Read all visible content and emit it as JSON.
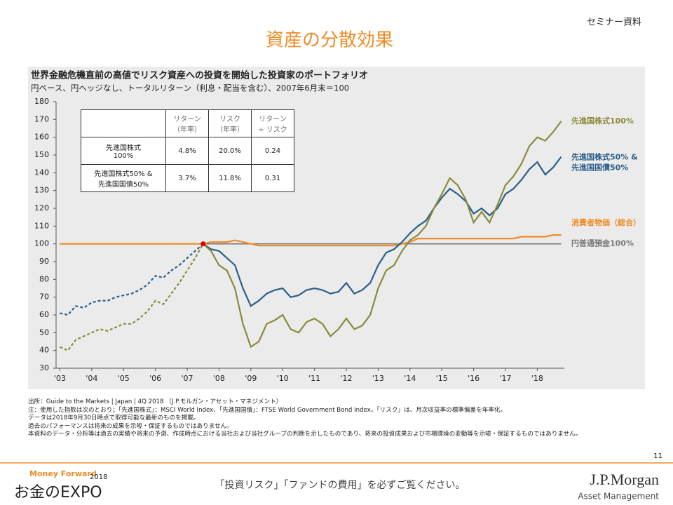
{
  "header": {
    "tag": "セミナー資料",
    "title": "資産の分散効果"
  },
  "chart_data": {
    "type": "line",
    "title": "世界金融危機直前の高値でリスク資産への投資を開始した投資家のポートフォリオ",
    "subtitle": "円ベース、円ヘッジなし、トータルリターン（利息・配当を含む）、2007年6月末＝100",
    "x": [
      2003,
      2003.25,
      2003.5,
      2003.75,
      2004,
      2004.25,
      2004.5,
      2004.75,
      2005,
      2005.25,
      2005.5,
      2005.75,
      2006,
      2006.25,
      2006.5,
      2006.75,
      2007,
      2007.25,
      2007.5,
      2007.75,
      2008,
      2008.25,
      2008.5,
      2008.75,
      2009,
      2009.25,
      2009.5,
      2009.75,
      2010,
      2010.25,
      2010.5,
      2010.75,
      2011,
      2011.25,
      2011.5,
      2011.75,
      2012,
      2012.25,
      2012.5,
      2012.75,
      2013,
      2013.25,
      2013.5,
      2013.75,
      2014,
      2014.25,
      2014.5,
      2014.75,
      2015,
      2015.25,
      2015.5,
      2015.75,
      2016,
      2016.25,
      2016.5,
      2016.75,
      2017,
      2017.25,
      2017.5,
      2017.75,
      2018,
      2018.25,
      2018.5,
      2018.75
    ],
    "series": [
      {
        "name": "先進国株式100%",
        "color": "#8a8a3a",
        "dashed_before": 2007.5,
        "values": [
          42,
          40,
          46,
          48,
          50,
          52,
          51,
          53,
          55,
          55,
          58,
          62,
          68,
          66,
          72,
          78,
          85,
          92,
          100,
          96,
          88,
          85,
          75,
          55,
          42,
          45,
          55,
          57,
          60,
          52,
          50,
          56,
          58,
          55,
          48,
          52,
          58,
          52,
          54,
          60,
          75,
          85,
          88,
          96,
          102,
          105,
          110,
          120,
          128,
          137,
          133,
          125,
          112,
          118,
          112,
          122,
          133,
          138,
          145,
          155,
          160,
          158,
          163,
          169
        ]
      },
      {
        "name": "先進国株式50% &\n先進国国債50%",
        "color": "#2a5f8a",
        "dashed_before": 2007.5,
        "values": [
          61,
          60,
          65,
          64,
          67,
          68,
          68,
          70,
          71,
          72,
          74,
          77,
          82,
          81,
          85,
          88,
          92,
          96,
          100,
          97,
          96,
          92,
          88,
          75,
          65,
          68,
          72,
          74,
          75,
          70,
          71,
          74,
          75,
          74,
          72,
          73,
          78,
          72,
          74,
          78,
          88,
          95,
          97,
          101,
          106,
          110,
          113,
          120,
          126,
          131,
          128,
          124,
          117,
          120,
          116,
          120,
          128,
          131,
          136,
          142,
          146,
          139,
          143,
          149
        ]
      },
      {
        "name": "消費者物価（総合）",
        "color": "#f08a24",
        "values": [
          100,
          100,
          100,
          100,
          100,
          100,
          100,
          100,
          100,
          100,
          100,
          100,
          100,
          100,
          100,
          100,
          100,
          100,
          100,
          101,
          101,
          101,
          102,
          101,
          100,
          99,
          99,
          99,
          99,
          99,
          99,
          99,
          99,
          99,
          99,
          99,
          99,
          99,
          99,
          99,
          99,
          99,
          99,
          100,
          101,
          103,
          103,
          103,
          103,
          103,
          103,
          103,
          103,
          103,
          103,
          103,
          103,
          103,
          104,
          104,
          104,
          104,
          105,
          105
        ]
      },
      {
        "name": "円普通預金100%",
        "color": "#777777",
        "values": [
          100,
          100,
          100,
          100,
          100,
          100,
          100,
          100,
          100,
          100,
          100,
          100,
          100,
          100,
          100,
          100,
          100,
          100,
          100,
          100,
          100,
          100,
          100,
          100,
          100,
          100,
          100,
          100,
          100,
          100,
          100,
          100,
          100,
          100,
          100,
          100,
          100,
          100,
          100,
          100,
          100,
          100,
          100,
          100,
          100,
          100,
          100,
          100,
          100,
          100,
          100,
          100,
          100,
          100,
          100,
          100,
          100,
          100,
          100,
          100,
          100,
          100,
          100,
          100
        ]
      }
    ],
    "marker": {
      "x": 2007.5,
      "y": 100,
      "color": "#e00000"
    },
    "xlim": [
      2002.88,
      2018.85
    ],
    "xticks": [
      {
        "value": 2003,
        "label": "'03"
      },
      {
        "value": 2004,
        "label": "'04"
      },
      {
        "value": 2005,
        "label": "'05"
      },
      {
        "value": 2006,
        "label": "'06"
      },
      {
        "value": 2007,
        "label": "'07"
      },
      {
        "value": 2008,
        "label": "'08"
      },
      {
        "value": 2009,
        "label": "'09"
      },
      {
        "value": 2010,
        "label": "'10"
      },
      {
        "value": 2011,
        "label": "'11"
      },
      {
        "value": 2012,
        "label": "'12"
      },
      {
        "value": 2013,
        "label": "'13"
      },
      {
        "value": 2014,
        "label": "'14"
      },
      {
        "value": 2015,
        "label": "'15"
      },
      {
        "value": 2016,
        "label": "'16"
      },
      {
        "value": 2017,
        "label": "'17"
      },
      {
        "value": 2018,
        "label": "'18"
      }
    ],
    "ylim": [
      30,
      180
    ],
    "yticks": [
      30,
      40,
      50,
      60,
      70,
      80,
      90,
      100,
      110,
      120,
      130,
      140,
      150,
      160,
      170,
      180
    ],
    "table": {
      "header": [
        "",
        "リターン\n（年率）",
        "リスク\n（年率）",
        "リターン\n÷ リスク"
      ],
      "rows": [
        [
          "先進国株式\n100%",
          "4.8%",
          "20.0%",
          "0.24"
        ],
        [
          "先進国株式50% &\n先進国国債50%",
          "3.7%",
          "11.8%",
          "0.31"
        ]
      ]
    }
  },
  "notes": [
    "出所：Guide to the Markets | Japan | 4Q 2018 （J.P.モルガン・アセット・マネジメント）",
    "注：使用した指数は次のとおり；「先進国株式」：MSCI World Index、「先進国国債」：FTSE World Government Bond Index。「リスク」は、月次収益率の標準偏差を年率化。",
    "データは2018年9月30日時点で取得可能な最新のものを掲載。",
    "過去のパフォーマンスは将来の成果を示唆・保証するものではありません。",
    "本資料のデータ・分析等は過去の実績や将来の予測、作成時点における当社および当社グループの判断を示したものであり、将来の投資成果および市場環境の変動等を示唆・保証するものではありません。"
  ],
  "page_number": "11",
  "footer": {
    "brand": "Money Forward",
    "year": "2018",
    "event": "お金のEXPO",
    "notice": "「投資リスク」「ファンドの費用」を必ずご覧ください。",
    "company": "J.P.Morgan",
    "division": "Asset Management"
  }
}
